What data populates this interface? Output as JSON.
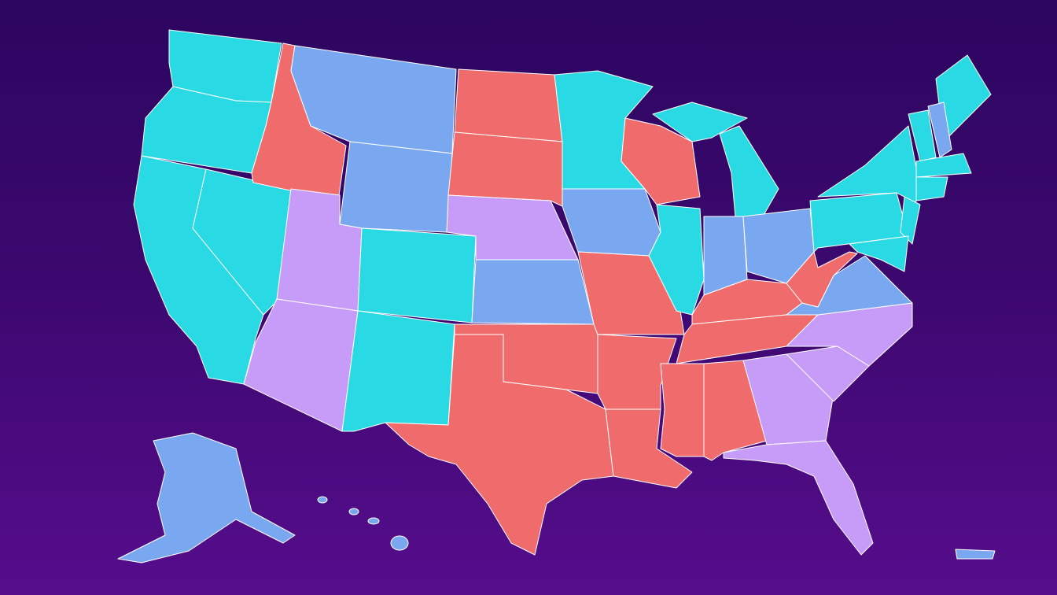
{
  "map": {
    "category_colors": {
      "cyan": "#29d9e3",
      "blue": "#7aa8f0",
      "red": "#f06b6b",
      "lilac": "#c69cf8"
    },
    "background": {
      "top": "#2c0660",
      "bottom": "#560d8c"
    },
    "state_categories": {
      "WA": "cyan",
      "OR": "cyan",
      "CA": "cyan",
      "NV": "cyan",
      "CO": "cyan",
      "NM": "cyan",
      "MN": "cyan",
      "IL": "cyan",
      "MI": "cyan",
      "NY": "cyan",
      "PA": "cyan",
      "NJ": "cyan",
      "VT": "cyan",
      "ME": "cyan",
      "MA": "cyan",
      "CT": "cyan",
      "MD": "cyan",
      "MT": "blue",
      "WY": "blue",
      "IA": "blue",
      "KS": "blue",
      "IN": "blue",
      "OH": "blue",
      "VA": "blue",
      "NH": "blue",
      "AK": "blue",
      "HI": "blue",
      "PR": "blue",
      "ID": "red",
      "ND": "red",
      "SD": "red",
      "MO": "red",
      "OK": "red",
      "TX": "red",
      "AR": "red",
      "LA": "red",
      "WI": "red",
      "KY": "red",
      "TN": "red",
      "MS": "red",
      "AL": "red",
      "WV": "red",
      "UT": "lilac",
      "AZ": "lilac",
      "NE": "lilac",
      "GA": "lilac",
      "FL": "lilac",
      "SC": "lilac",
      "NC": "lilac"
    }
  }
}
